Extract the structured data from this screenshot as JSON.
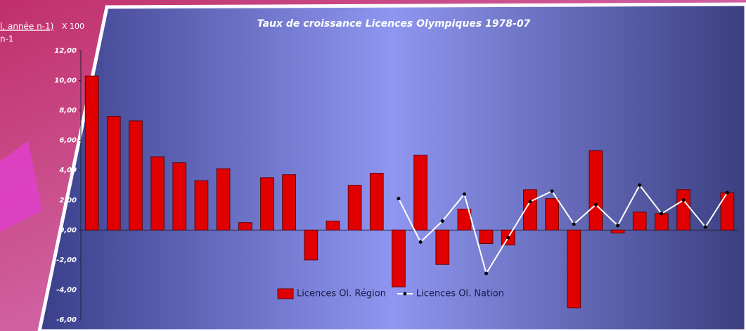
{
  "formula_fragments": [
    "l, année n-1)",
    "X 100",
    "n-1"
  ],
  "chart_data": {
    "type": "bar",
    "title": "Taux de croissance Licences Olympiques 1978-07",
    "categories": [
      null,
      null,
      null,
      null,
      null,
      null,
      null,
      null,
      null,
      null,
      null,
      null,
      null,
      null,
      null,
      null,
      null,
      null,
      null,
      null,
      null,
      null,
      null,
      null,
      null,
      null,
      null,
      null,
      null,
      null
    ],
    "series": [
      {
        "name": "Licences Ol. Région",
        "type": "bar",
        "color": "#e00000",
        "values": [
          10.3,
          7.6,
          7.3,
          4.9,
          4.5,
          3.3,
          4.1,
          0.5,
          3.5,
          3.7,
          -2.0,
          0.6,
          3.0,
          3.8,
          -3.8,
          5.0,
          -2.3,
          1.4,
          -0.9,
          -1.0,
          2.7,
          2.1,
          -5.2,
          5.3,
          -0.2,
          1.2,
          1.1,
          2.7,
          null,
          2.5
        ]
      },
      {
        "name": "Licences Ol. Nation",
        "type": "line",
        "color": "#ffffff",
        "values": [
          null,
          null,
          null,
          null,
          null,
          null,
          null,
          null,
          null,
          null,
          null,
          null,
          null,
          null,
          2.1,
          -0.8,
          0.6,
          2.4,
          -2.9,
          -0.5,
          1.9,
          2.6,
          0.4,
          1.7,
          0.3,
          3.0,
          1.1,
          2.0,
          0.2,
          2.5
        ]
      }
    ],
    "ylim": [
      -6,
      12
    ],
    "yticks": [
      {
        "value": -6,
        "label": "-6,00"
      },
      {
        "value": -4,
        "label": "-4,00"
      },
      {
        "value": -2,
        "label": "-2,00"
      },
      {
        "value": 0,
        "label": "0,00"
      },
      {
        "value": 2,
        "label": "2,00"
      },
      {
        "value": 4,
        "label": "4,00"
      },
      {
        "value": 6,
        "label": "6,00"
      },
      {
        "value": 8,
        "label": "8,00"
      },
      {
        "value": 10,
        "label": "10,00"
      },
      {
        "value": 12,
        "label": "12,00"
      }
    ],
    "legend": "bottom"
  }
}
